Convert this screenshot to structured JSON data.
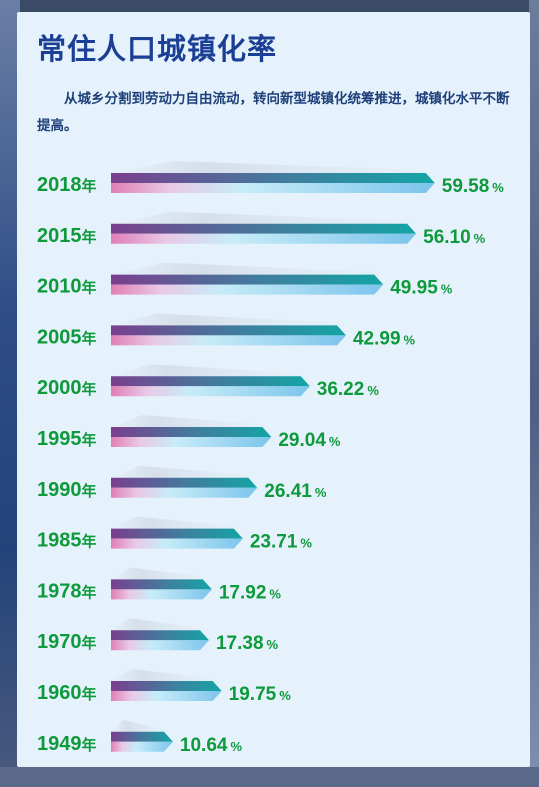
{
  "title": "常住人口城镇化率",
  "description": "从城乡分割到劳动力自由流动，转向新型城镇化统筹推进，城镇化水平不断提高。",
  "colors": {
    "accent_green": "#0e9a3c",
    "title_blue": "#1c3f96",
    "bar_purple": "#7a3f8e",
    "bar_teal": "#13a5a6",
    "bar_light_blue": "#7cc4ec",
    "bar_pink": "#e07fb6"
  },
  "chart_data": {
    "type": "bar",
    "orientation": "horizontal",
    "year_suffix": "年",
    "value_suffix": "%",
    "categories": [
      "2018",
      "2015",
      "2010",
      "2005",
      "2000",
      "1995",
      "1990",
      "1985",
      "1978",
      "1970",
      "1960",
      "1949"
    ],
    "values": [
      59.58,
      56.1,
      49.95,
      42.99,
      36.22,
      29.04,
      26.41,
      23.71,
      17.92,
      17.38,
      19.75,
      10.64
    ],
    "value_labels": [
      "59.58",
      "56.10",
      "49.95",
      "42.99",
      "36.22",
      "29.04",
      "26.41",
      "23.71",
      "17.92",
      "17.38",
      "19.75",
      "10.64"
    ],
    "xlim": [
      0,
      60
    ],
    "grid": false,
    "legend": "none"
  }
}
